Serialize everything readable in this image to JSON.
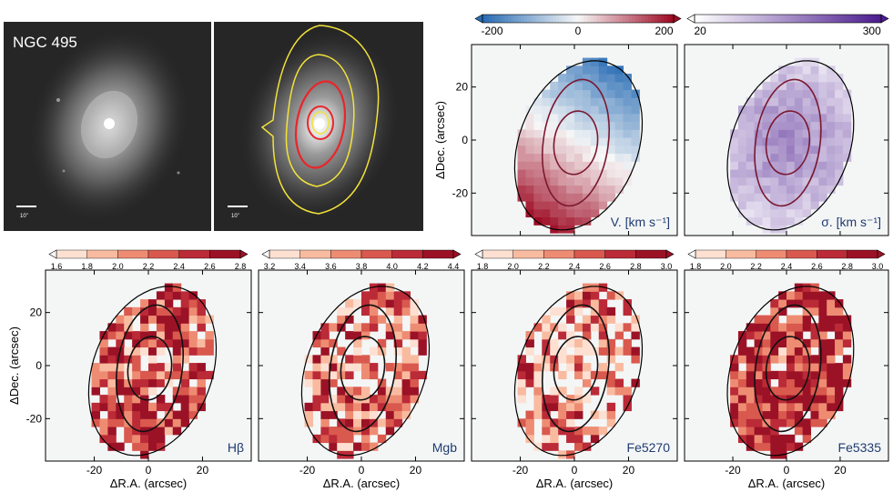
{
  "figure": {
    "galaxy_name": "NGC 495",
    "scale_bar_label": "10\"",
    "xlabel": "ΔR.A. (arcsec)",
    "ylabel": "ΔDec. (arcsec)",
    "x_ticks": [
      "-20",
      "0",
      "20"
    ],
    "y_ticks": [
      "20",
      "0",
      "-20"
    ]
  },
  "kinematics": [
    {
      "label": "V. [km s⁻¹]",
      "cbar_ticks": [
        "-200",
        "0",
        "200"
      ],
      "cmap": [
        "#2a6db5",
        "#f7f7f7",
        "#9e0b24"
      ]
    },
    {
      "label": "σ. [km s⁻¹]",
      "cbar_ticks": [
        "20",
        "300"
      ],
      "cmap": [
        "#ffffff",
        "#4c1d8f"
      ]
    }
  ],
  "indices": [
    {
      "label": "Hβ",
      "cbar_ticks": [
        "1.6",
        "1.8",
        "2.0",
        "2.2",
        "2.4",
        "2.6",
        "2.8"
      ]
    },
    {
      "label": "Mgb",
      "cbar_ticks": [
        "3.2",
        "3.4",
        "3.6",
        "3.8",
        "4.0",
        "4.2",
        "4.4"
      ]
    },
    {
      "label": "Fe5270",
      "cbar_ticks": [
        "1.8",
        "2.0",
        "2.2",
        "2.4",
        "2.6",
        "2.8",
        "3.0"
      ]
    },
    {
      "label": "Fe5335",
      "cbar_ticks": [
        "1.8",
        "2.0",
        "2.2",
        "2.4",
        "2.6",
        "2.8",
        "3.0"
      ]
    }
  ],
  "colors": {
    "discrete": [
      "#fde0d2",
      "#f9bba0",
      "#ee8c73",
      "#d9594e",
      "#bb2a37",
      "#9b1226"
    ],
    "contour_yellow": "#f2e23a",
    "contour_red": "#e8262b",
    "ellipse_kin": "#7a1830"
  }
}
